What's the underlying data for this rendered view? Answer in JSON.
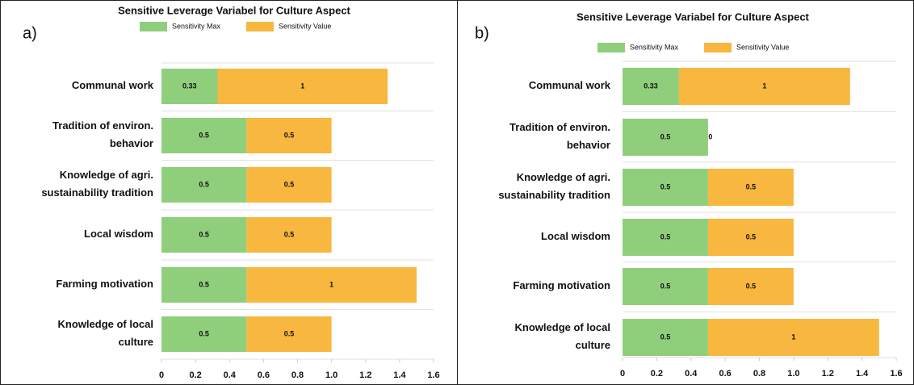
{
  "chart_data": [
    {
      "type": "bar",
      "orientation": "horizontal",
      "stacked": true,
      "panel_label": "a)",
      "title": "Sensitive Leverage Variabel for Culture Aspect",
      "categories": [
        [
          "Communal work"
        ],
        [
          "Tradition of environ.",
          "behavior"
        ],
        [
          "Knowledge of agri.",
          "sustainability tradition"
        ],
        [
          "Local wisdom"
        ],
        [
          "Farming motivation"
        ],
        [
          "Knowledge of local",
          "culture"
        ]
      ],
      "series": [
        {
          "name": "Sensitivity Max",
          "color": "#8fcf7c",
          "values": [
            0.33,
            0.5,
            0.5,
            0.5,
            0.5,
            0.5
          ]
        },
        {
          "name": "Sensitivity Value",
          "color": "#f8b73f",
          "values": [
            1,
            0.5,
            0.5,
            0.5,
            1,
            0.5
          ]
        }
      ],
      "xlim": [
        0,
        1.6
      ],
      "xticks": [
        0,
        0.2,
        0.4,
        0.6,
        0.8,
        {
          "value": 1,
          "label": "1.0"
        },
        1.2,
        1.4,
        1.6
      ],
      "grid": true
    },
    {
      "type": "bar",
      "orientation": "horizontal",
      "stacked": true,
      "panel_label": "b)",
      "title": "Sensitive Leverage Variabel for Culture Aspect",
      "categories": [
        [
          "Communal work"
        ],
        [
          "Tradition of environ.",
          "behavior"
        ],
        [
          "Knowledge of agri.",
          "sustainability tradition"
        ],
        [
          "Local wisdom"
        ],
        [
          "Farming motivation"
        ],
        [
          "Knowledge of local",
          "culture"
        ]
      ],
      "series": [
        {
          "name": "Sensitivity Max",
          "color": "#8fcf7c",
          "values": [
            0.33,
            0.5,
            0.5,
            0.5,
            0.5,
            0.5
          ]
        },
        {
          "name": "Sensitivity Value",
          "color": "#f8b73f",
          "values": [
            1,
            0,
            0.5,
            0.5,
            0.5,
            1
          ]
        }
      ],
      "xlim": [
        0,
        1.6
      ],
      "xticks": [
        0,
        0.2,
        0.4,
        0.6,
        0.8,
        {
          "value": 1,
          "label": "1.0"
        },
        1.2,
        1.4,
        1.6
      ],
      "grid": true
    }
  ]
}
